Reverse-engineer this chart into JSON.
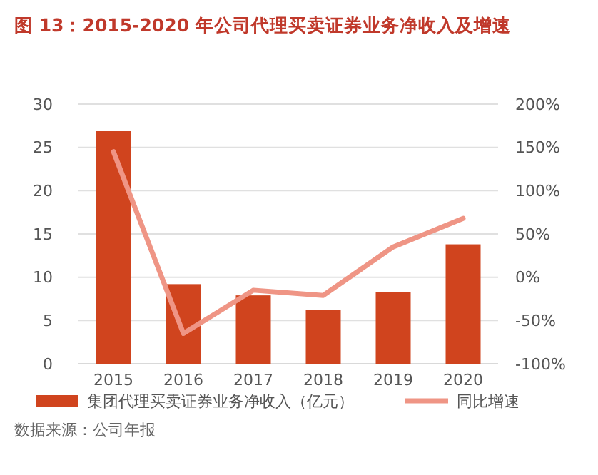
{
  "chart_data": {
    "type": "bar",
    "title": "图 13：2015-2020 年公司代理买卖证券业务净收入及增速",
    "categories": [
      "2015",
      "2016",
      "2017",
      "2018",
      "2019",
      "2020"
    ],
    "series": [
      {
        "name": "集团代理买卖证券业务净收入（亿元）",
        "color": "#d0441e",
        "values": [
          26.9,
          9.2,
          7.9,
          6.2,
          8.3,
          13.8
        ]
      },
      {
        "name": "同比增速",
        "type": "line",
        "axis": "y2",
        "color": "#ef9585",
        "values": [
          145,
          -65,
          -15,
          -21,
          35,
          68
        ]
      }
    ],
    "ylim": [
      0,
      30
    ],
    "yticks": [
      0,
      5,
      10,
      15,
      20,
      25,
      30
    ],
    "y2lim": [
      -100,
      200
    ],
    "y2ticks": [
      {
        "value": -100,
        "label": "-100%"
      },
      {
        "value": -50,
        "label": "-50%"
      },
      {
        "value": 0,
        "label": "0%"
      },
      {
        "value": 50,
        "label": "50%"
      },
      {
        "value": 100,
        "label": "100%"
      },
      {
        "value": 150,
        "label": "150%"
      },
      {
        "value": 200,
        "label": "200%"
      }
    ],
    "grid": "y",
    "legend": "bottom",
    "marker": "none",
    "line_style": "solid",
    "annotations": [
      "数据来源：公司年报"
    ]
  }
}
